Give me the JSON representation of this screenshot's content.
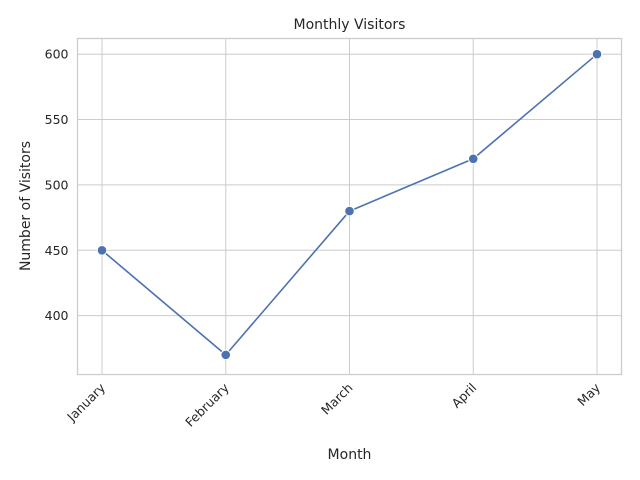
{
  "chart_data": {
    "type": "line",
    "title": "Monthly Visitors",
    "xlabel": "Month",
    "ylabel": "Number of Visitors",
    "categories": [
      "January",
      "February",
      "March",
      "April",
      "May"
    ],
    "series": [
      {
        "values": [
          450,
          370,
          480,
          520,
          600
        ],
        "color": "#4c72b0"
      }
    ],
    "ylim": [
      355,
      612
    ],
    "yticks": [
      "400",
      "450",
      "500",
      "550",
      "600"
    ],
    "grid": true,
    "legend": "none",
    "marker": "circle"
  }
}
